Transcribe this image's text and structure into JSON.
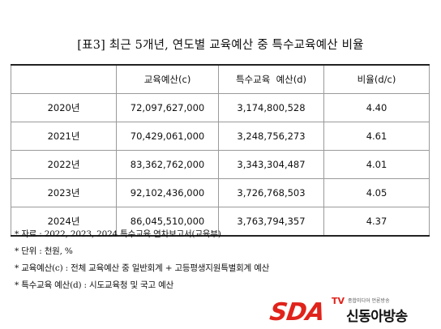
{
  "title": "[표3] 최근 5개년, 연도별 교육예산 중 특수교육예산 비율",
  "table": {
    "headers": [
      "",
      "교육예산(c)",
      "특수교육  예산(d)",
      "비율(d/c)"
    ],
    "rows": [
      {
        "year": "2020년",
        "budget": "72,097,627,000",
        "special": "3,174,800,528",
        "ratio": "4.40"
      },
      {
        "year": "2021년",
        "budget": "70,429,061,000",
        "special": "3,248,756,273",
        "ratio": "4.61"
      },
      {
        "year": "2022년",
        "budget": "83,362,762,000",
        "special": "3,343,304,487",
        "ratio": "4.01"
      },
      {
        "year": "2023년",
        "budget": "92,102,436,000",
        "special": "3,726,768,503",
        "ratio": "4.05"
      },
      {
        "year": "2024년",
        "budget": "86,045,510,000",
        "special": "3,763,794,357",
        "ratio": "4.37"
      }
    ]
  },
  "notes": [
    "*  자료 : 2022, 2023, 2024 특수교육 연차보고서(교육부)",
    "*  단위 : 천원, %",
    "*  교육예산(c) : 전체 교육예산 중 일반회계 + 고등평생지원특별회계 예산",
    "*  특수교육 예산(d) : 시도교육청 및 국고 예산"
  ],
  "logo": {
    "mark": "SDA",
    "tv": "TV",
    "tagline": "종합미디어 언론방송",
    "name": "신동아방송",
    "accent_color": "#e0231b"
  }
}
